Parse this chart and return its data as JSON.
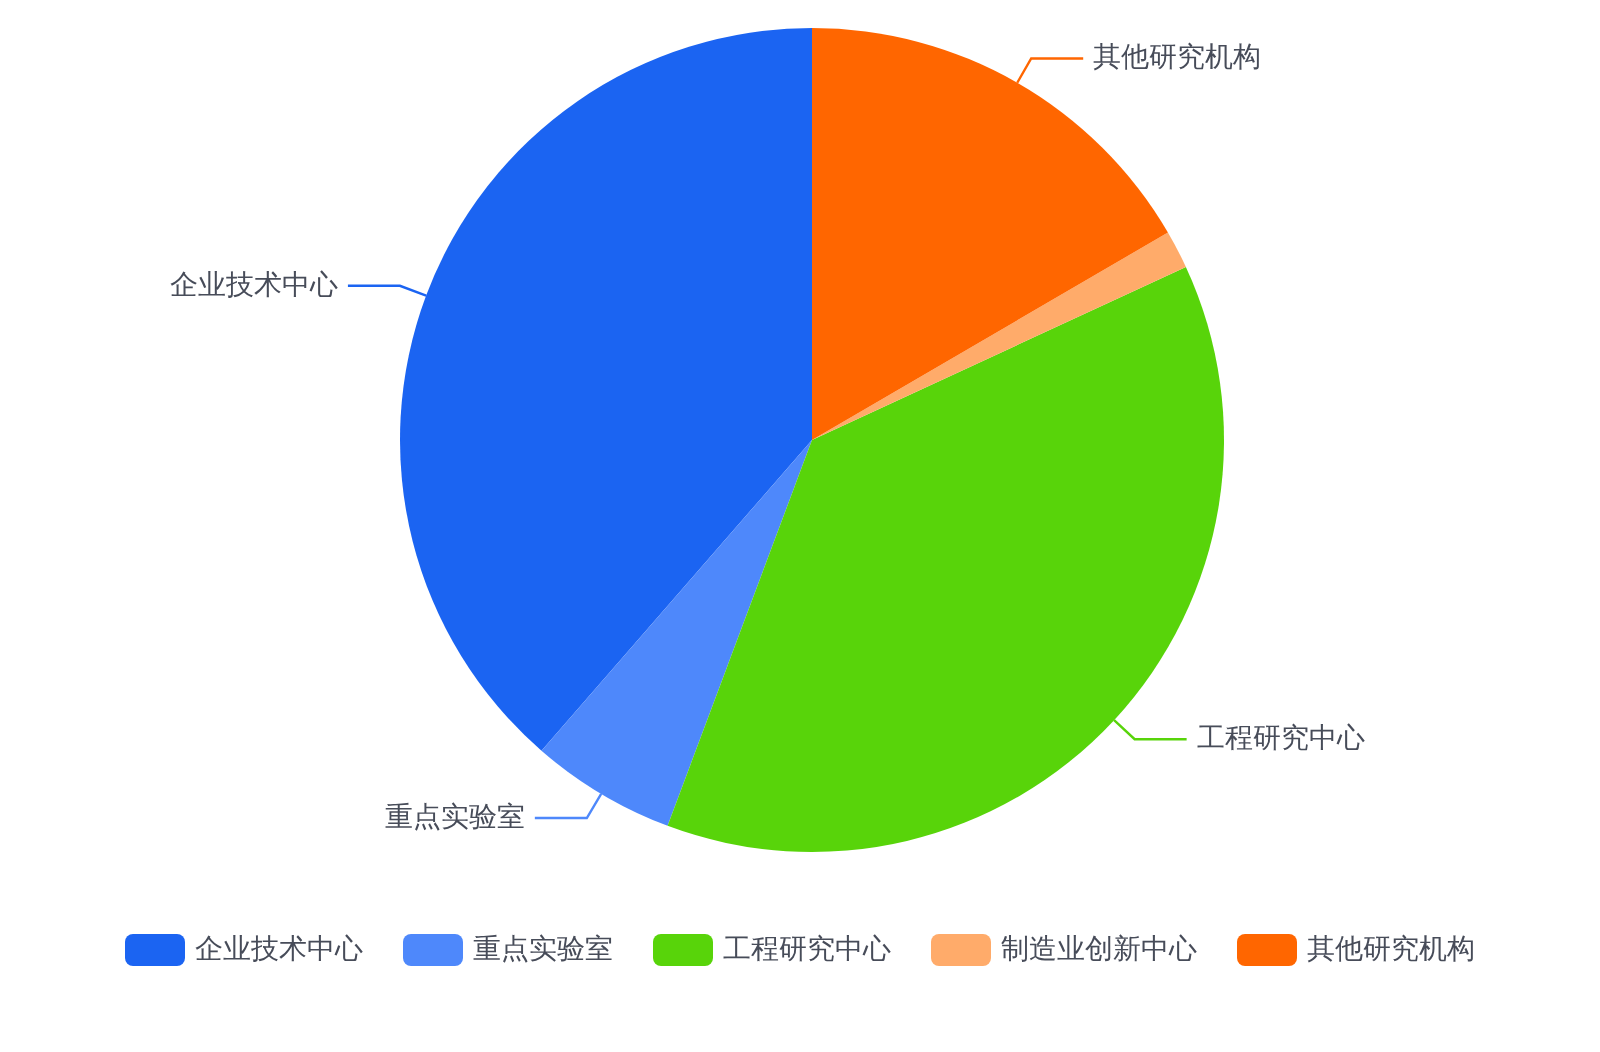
{
  "chart_data": {
    "type": "pie",
    "categories": [
      "企业技术中心",
      "重点实验室",
      "工程研究中心",
      "制造业创新中心",
      "其他研究机构"
    ],
    "values": [
      38.6,
      5.7,
      37.6,
      1.5,
      16.6
    ],
    "colors": [
      "#1b64f2",
      "#4e88fb",
      "#58d40a",
      "#ffab6a",
      "#ff6600"
    ],
    "legend": "bottom"
  }
}
